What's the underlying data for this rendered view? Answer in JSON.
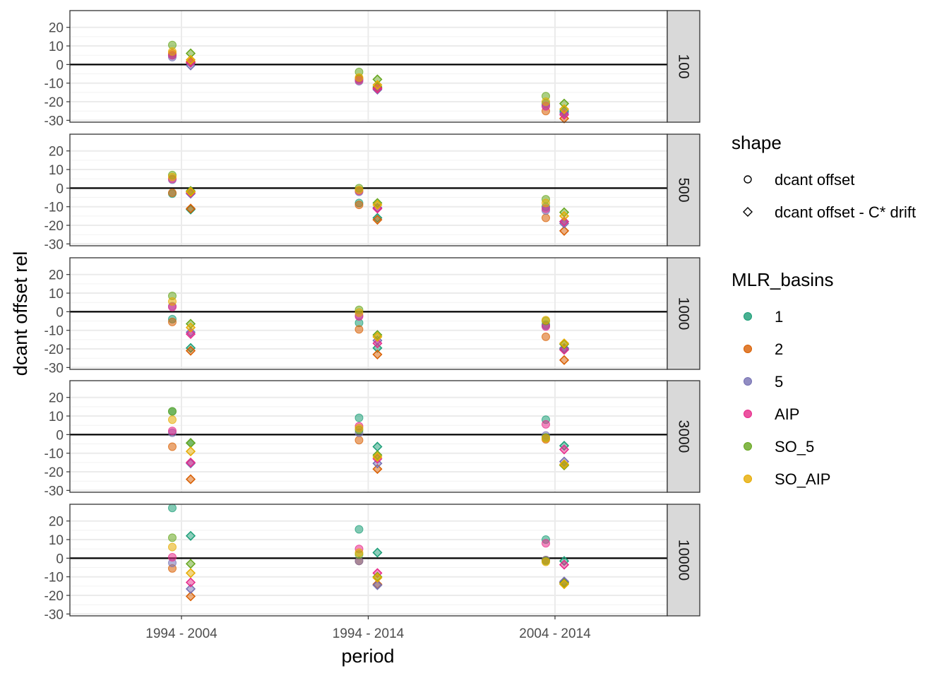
{
  "chart_data": {
    "type": "scatter",
    "xlabel": "period",
    "ylabel": "dcant offset rel",
    "categories": [
      "1994 - 2004",
      "1994 - 2014",
      "2004 - 2014"
    ],
    "ylim": [
      -31,
      29
    ],
    "yticks": [
      -30,
      -20,
      -10,
      0,
      10,
      20
    ],
    "ytick_labels": [
      "-30",
      "-20",
      "-10",
      "0",
      "10",
      "20"
    ],
    "grid": true,
    "reference_line_y": 0,
    "facets": [
      "100",
      "500",
      "1000",
      "3000",
      "10000"
    ],
    "legend": {
      "placement": "right",
      "shape_title": "shape",
      "shape_entries": [
        {
          "label": "dcant offset",
          "symbol": "circle"
        },
        {
          "label": "dcant offset - C* drift",
          "symbol": "diamond"
        }
      ],
      "color_title": "MLR_basins",
      "color_entries": [
        "1",
        "2",
        "5",
        "AIP",
        "SO_5",
        "SO_AIP"
      ]
    },
    "colors": {
      "1": "#1b9e77",
      "2": "#d95f02",
      "5": "#7570b3",
      "AIP": "#e7298a",
      "SO_5": "#66a61e",
      "SO_AIP": "#e6ab02"
    },
    "panels": [
      {
        "facet": "100",
        "points": [
          {
            "period": "1994 - 2004",
            "shape": "dcant offset",
            "values": {
              "1": 5,
              "2": 6,
              "5": 4,
              "AIP": 5,
              "SO_5": 10.5,
              "SO_AIP": 7
            }
          },
          {
            "period": "1994 - 2004",
            "shape": "dcant offset - C* drift",
            "values": {
              "1": 1,
              "2": 1.5,
              "5": -0.5,
              "AIP": 1,
              "SO_5": 6,
              "SO_AIP": 2.5
            }
          },
          {
            "period": "1994 - 2014",
            "shape": "dcant offset",
            "values": {
              "1": -8,
              "2": -7.5,
              "5": -9,
              "AIP": -8.5,
              "SO_5": -4,
              "SO_AIP": -7
            }
          },
          {
            "period": "1994 - 2014",
            "shape": "dcant offset - C* drift",
            "values": {
              "1": -12,
              "2": -12.5,
              "5": -13.5,
              "AIP": -13,
              "SO_5": -8,
              "SO_AIP": -11
            }
          },
          {
            "period": "2004 - 2014",
            "shape": "dcant offset",
            "values": {
              "1": -21,
              "2": -25,
              "5": -22,
              "AIP": -22.5,
              "SO_5": -17,
              "SO_AIP": -20
            }
          },
          {
            "period": "2004 - 2014",
            "shape": "dcant offset - C* drift",
            "values": {
              "1": -25,
              "2": -29,
              "5": -26,
              "AIP": -27,
              "SO_5": -21,
              "SO_AIP": -24
            }
          }
        ]
      },
      {
        "facet": "500",
        "points": [
          {
            "period": "1994 - 2004",
            "shape": "dcant offset",
            "values": {
              "1": -3,
              "2": -2.5,
              "5": 4.5,
              "AIP": 5,
              "SO_5": 7,
              "SO_AIP": 6
            }
          },
          {
            "period": "1994 - 2004",
            "shape": "dcant offset - C* drift",
            "values": {
              "1": -11.5,
              "2": -11,
              "5": -3,
              "AIP": -2.5,
              "SO_5": -1.5,
              "SO_AIP": -2
            }
          },
          {
            "period": "1994 - 2014",
            "shape": "dcant offset",
            "values": {
              "1": -8,
              "2": -9,
              "5": -2,
              "AIP": -1.5,
              "SO_5": 0,
              "SO_AIP": -1
            }
          },
          {
            "period": "1994 - 2014",
            "shape": "dcant offset - C* drift",
            "values": {
              "1": -16,
              "2": -17,
              "5": -10.5,
              "AIP": -11,
              "SO_5": -8,
              "SO_AIP": -9
            }
          },
          {
            "period": "2004 - 2014",
            "shape": "dcant offset",
            "values": {
              "1": -10,
              "2": -16,
              "5": -12,
              "AIP": -11,
              "SO_5": -6,
              "SO_AIP": -8
            }
          },
          {
            "period": "2004 - 2014",
            "shape": "dcant offset - C* drift",
            "values": {
              "1": -18,
              "2": -23,
              "5": -19,
              "AIP": -18,
              "SO_5": -13,
              "SO_AIP": -15
            }
          }
        ]
      },
      {
        "facet": "1000",
        "points": [
          {
            "period": "1994 - 2004",
            "shape": "dcant offset",
            "values": {
              "1": -4,
              "2": -5.5,
              "5": 3,
              "AIP": 2.5,
              "SO_5": 8.5,
              "SO_AIP": 5.5
            }
          },
          {
            "period": "1994 - 2004",
            "shape": "dcant offset - C* drift",
            "values": {
              "1": -19.5,
              "2": -21,
              "5": -11,
              "AIP": -12,
              "SO_5": -6.5,
              "SO_AIP": -8.5
            }
          },
          {
            "period": "1994 - 2014",
            "shape": "dcant offset",
            "values": {
              "1": -6,
              "2": -9.5,
              "5": -2,
              "AIP": -2.5,
              "SO_5": 1,
              "SO_AIP": -0.5
            }
          },
          {
            "period": "1994 - 2014",
            "shape": "dcant offset - C* drift",
            "values": {
              "1": -19.5,
              "2": -23,
              "5": -15.5,
              "AIP": -17,
              "SO_5": -12.5,
              "SO_AIP": -13.5
            }
          },
          {
            "period": "2004 - 2014",
            "shape": "dcant offset",
            "values": {
              "1": -7,
              "2": -13.5,
              "5": -7.5,
              "AIP": -8,
              "SO_5": -5,
              "SO_AIP": -4.5
            }
          },
          {
            "period": "2004 - 2014",
            "shape": "dcant offset - C* drift",
            "values": {
              "1": -20,
              "2": -26,
              "5": -19.5,
              "AIP": -20.5,
              "SO_5": -17.5,
              "SO_AIP": -17
            }
          }
        ]
      },
      {
        "facet": "3000",
        "points": [
          {
            "period": "1994 - 2004",
            "shape": "dcant offset",
            "values": {
              "1": 12.5,
              "2": -6.5,
              "5": 1,
              "AIP": 2,
              "SO_5": 12.5,
              "SO_AIP": 8
            }
          },
          {
            "period": "1994 - 2004",
            "shape": "dcant offset - C* drift",
            "values": {
              "1": -4.5,
              "2": -24,
              "5": -15.5,
              "AIP": -15,
              "SO_5": -4.5,
              "SO_AIP": -9
            }
          },
          {
            "period": "1994 - 2014",
            "shape": "dcant offset",
            "values": {
              "1": 9,
              "2": -3,
              "5": 1,
              "AIP": 4.5,
              "SO_5": 2.5,
              "SO_AIP": 3.5
            }
          },
          {
            "period": "1994 - 2014",
            "shape": "dcant offset - C* drift",
            "values": {
              "1": -6.5,
              "2": -18.5,
              "5": -15.5,
              "AIP": -13,
              "SO_5": -11,
              "SO_AIP": -12
            }
          },
          {
            "period": "2004 - 2014",
            "shape": "dcant offset",
            "values": {
              "1": 8,
              "2": -2.5,
              "5": -0.5,
              "AIP": 5.5,
              "SO_5": -1.5,
              "SO_AIP": -2
            }
          },
          {
            "period": "2004 - 2014",
            "shape": "dcant offset - C* drift",
            "values": {
              "1": -6,
              "2": -16.5,
              "5": -14.5,
              "AIP": -8,
              "SO_5": -16.5,
              "SO_AIP": -16
            }
          }
        ]
      },
      {
        "facet": "10000",
        "points": [
          {
            "period": "1994 - 2004",
            "shape": "dcant offset",
            "values": {
              "1": 27,
              "2": -5.5,
              "5": -2.5,
              "AIP": 0.5,
              "SO_5": 11,
              "SO_AIP": 6
            }
          },
          {
            "period": "1994 - 2004",
            "shape": "dcant offset - C* drift",
            "values": {
              "1": 12,
              "2": -20.5,
              "5": -16.5,
              "AIP": -13,
              "SO_5": -3,
              "SO_AIP": -8
            }
          },
          {
            "period": "1994 - 2014",
            "shape": "dcant offset",
            "values": {
              "1": 15.5,
              "2": -1.5,
              "5": -1.5,
              "AIP": 5,
              "SO_5": 2,
              "SO_AIP": 3
            }
          },
          {
            "period": "1994 - 2014",
            "shape": "dcant offset - C* drift",
            "values": {
              "1": 3,
              "2": -14,
              "5": -14.5,
              "AIP": -8,
              "SO_5": -10,
              "SO_AIP": -10.5
            }
          },
          {
            "period": "2004 - 2014",
            "shape": "dcant offset",
            "values": {
              "1": 10,
              "2": -1,
              "5": -1,
              "AIP": 8,
              "SO_5": -1.5,
              "SO_AIP": -2
            }
          },
          {
            "period": "2004 - 2014",
            "shape": "dcant offset - C* drift",
            "values": {
              "1": -1.5,
              "2": -13,
              "5": -12.5,
              "AIP": -3.5,
              "SO_5": -13.5,
              "SO_AIP": -14
            }
          }
        ]
      }
    ]
  }
}
